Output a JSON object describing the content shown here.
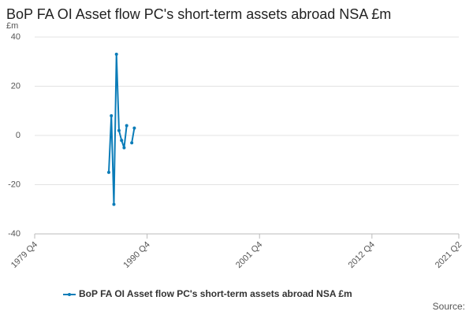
{
  "chart_data": {
    "type": "line",
    "title": "BoP FA OI Asset flow PC's short-term assets abroad NSA £m",
    "y_unit": "£m",
    "source": "Source:",
    "x": [
      "1987 Q1",
      "1987 Q2",
      "1987 Q3",
      "1987 Q4",
      "1988 Q1",
      "1988 Q2",
      "1988 Q3",
      "1988 Q4",
      "1989 Q1",
      "1989 Q2",
      "1989 Q3"
    ],
    "series": [
      {
        "name": "BoP FA OI Asset flow PC's short-term assets abroad NSA £m",
        "color": "#0a7cb8",
        "values": [
          -15,
          8,
          -28,
          33,
          2,
          -2,
          -5,
          4,
          null,
          -3,
          3
        ]
      }
    ],
    "xlim": [
      "1979 Q4",
      "2021 Q2"
    ],
    "xticks": [
      "1979 Q4",
      "1990 Q4",
      "2001 Q4",
      "2012 Q4",
      "2021 Q2"
    ],
    "ylim": [
      -40,
      40
    ],
    "yticks": [
      -40,
      -20,
      0,
      20,
      40
    ],
    "grid": true
  }
}
